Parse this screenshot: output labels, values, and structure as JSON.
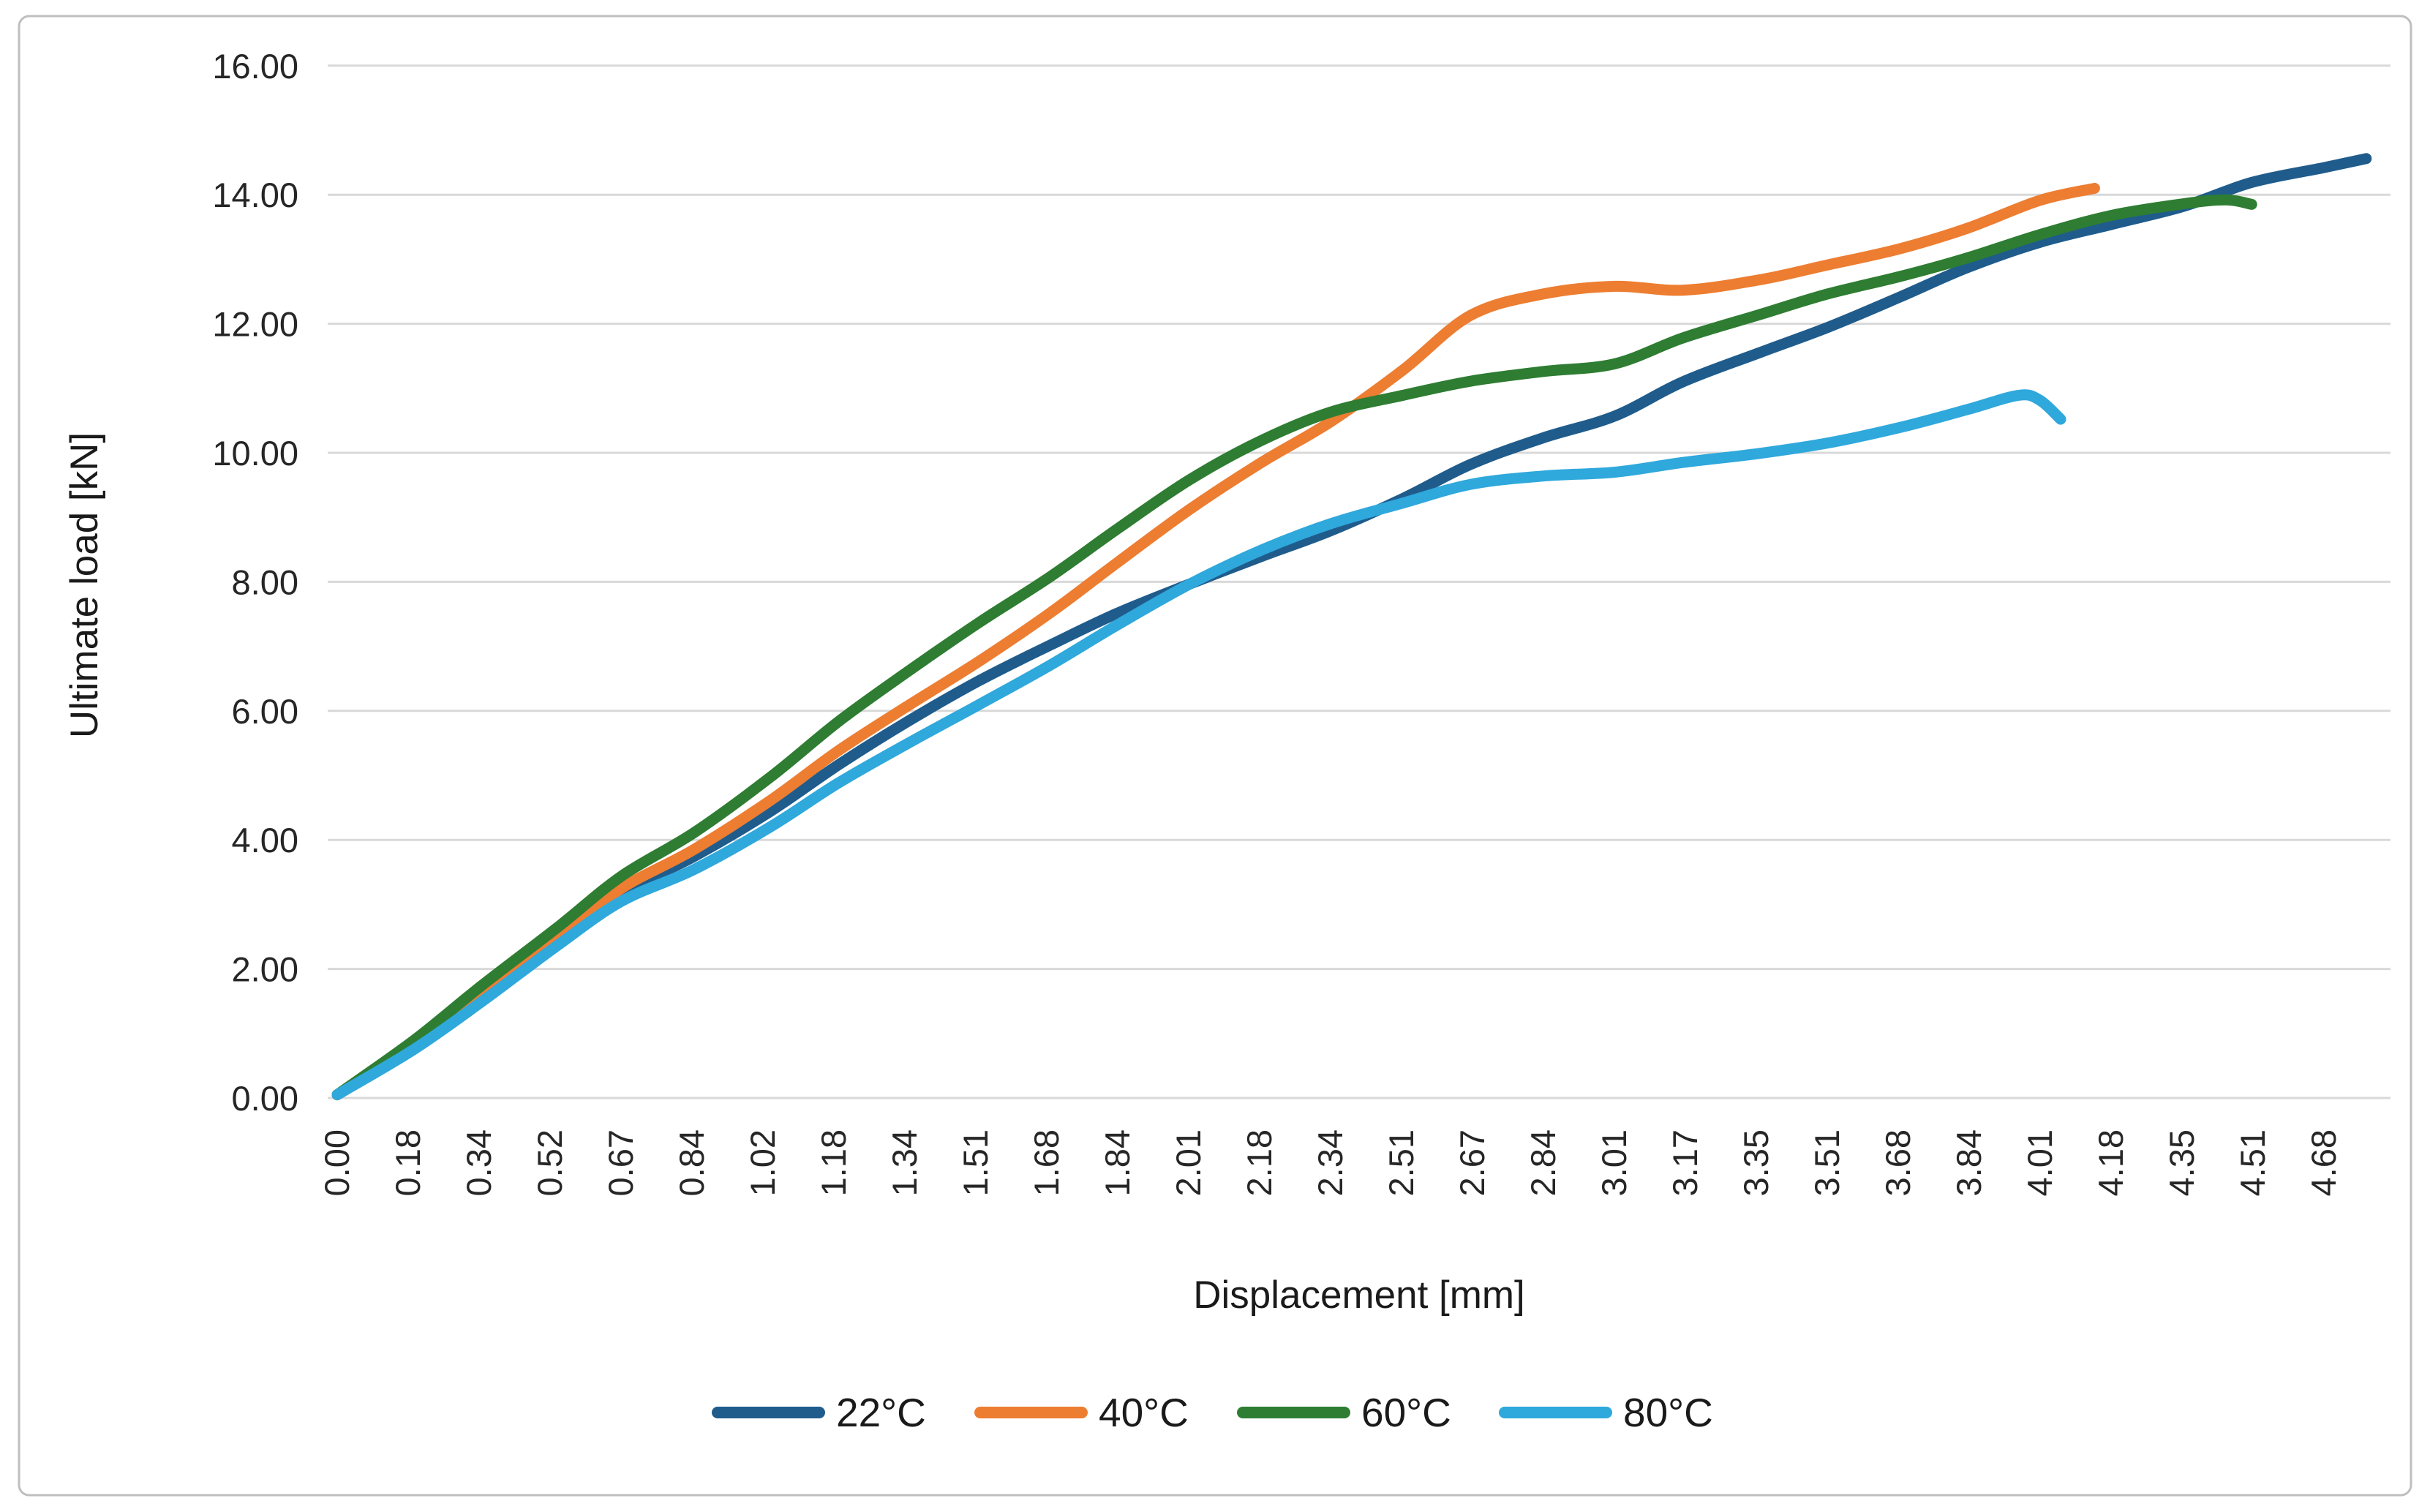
{
  "chart_data": {
    "type": "line",
    "title": "",
    "xlabel": "Displacement [mm]",
    "ylabel": "Ultimate load [kN]",
    "xlim": [
      0,
      4.68
    ],
    "ylim": [
      0,
      16
    ],
    "grid": "horizontal",
    "legend_position": "bottom-center",
    "gridline_color": "#D9D9D9",
    "border_color": "#BFBFBF",
    "x_tick_labels": [
      "0.00",
      "0.18",
      "0.34",
      "0.52",
      "0.67",
      "0.84",
      "1.02",
      "1.18",
      "1.34",
      "1.51",
      "1.68",
      "1.84",
      "2.01",
      "2.18",
      "2.34",
      "2.51",
      "2.67",
      "2.84",
      "3.01",
      "3.17",
      "3.35",
      "3.51",
      "3.68",
      "3.84",
      "4.01",
      "4.18",
      "4.35",
      "4.51",
      "4.68"
    ],
    "y_ticks": [
      {
        "label": "0.00",
        "value": 0
      },
      {
        "label": "2.00",
        "value": 2
      },
      {
        "label": "4.00",
        "value": 4
      },
      {
        "label": "6.00",
        "value": 6
      },
      {
        "label": "8.00",
        "value": 8
      },
      {
        "label": "10.00",
        "value": 10
      },
      {
        "label": "12.00",
        "value": 12
      },
      {
        "label": "14.00",
        "value": 14
      },
      {
        "label": "16.00",
        "value": 16
      }
    ],
    "series": [
      {
        "name": "22°C",
        "color": "#1F5C8C",
        "points": [
          [
            0,
            0.05
          ],
          [
            0.18,
            0.78
          ],
          [
            0.34,
            1.54
          ],
          [
            0.52,
            2.45
          ],
          [
            0.67,
            3.18
          ],
          [
            0.84,
            3.74
          ],
          [
            1.02,
            4.44
          ],
          [
            1.18,
            5.16
          ],
          [
            1.34,
            5.82
          ],
          [
            1.51,
            6.46
          ],
          [
            1.68,
            7.02
          ],
          [
            1.84,
            7.52
          ],
          [
            2.01,
            7.97
          ],
          [
            2.18,
            8.4
          ],
          [
            2.34,
            8.79
          ],
          [
            2.51,
            9.29
          ],
          [
            2.67,
            9.82
          ],
          [
            2.84,
            10.23
          ],
          [
            3.01,
            10.57
          ],
          [
            3.17,
            11.1
          ],
          [
            3.35,
            11.55
          ],
          [
            3.51,
            11.94
          ],
          [
            3.68,
            12.41
          ],
          [
            3.84,
            12.87
          ],
          [
            4.01,
            13.26
          ],
          [
            4.18,
            13.54
          ],
          [
            4.35,
            13.82
          ],
          [
            4.51,
            14.19
          ],
          [
            4.68,
            14.42
          ],
          [
            4.78,
            14.56
          ]
        ]
      },
      {
        "name": "40°C",
        "color": "#ED7D31",
        "points": [
          [
            0,
            0.05
          ],
          [
            0.18,
            0.81
          ],
          [
            0.34,
            1.59
          ],
          [
            0.52,
            2.5
          ],
          [
            0.67,
            3.25
          ],
          [
            0.84,
            3.85
          ],
          [
            1.02,
            4.61
          ],
          [
            1.18,
            5.38
          ],
          [
            1.34,
            6.06
          ],
          [
            1.51,
            6.76
          ],
          [
            1.68,
            7.52
          ],
          [
            1.84,
            8.31
          ],
          [
            2.01,
            9.13
          ],
          [
            2.18,
            9.86
          ],
          [
            2.34,
            10.48
          ],
          [
            2.51,
            11.28
          ],
          [
            2.67,
            12.13
          ],
          [
            2.84,
            12.46
          ],
          [
            3.01,
            12.58
          ],
          [
            3.17,
            12.52
          ],
          [
            3.35,
            12.68
          ],
          [
            3.51,
            12.91
          ],
          [
            3.68,
            13.16
          ],
          [
            3.84,
            13.48
          ],
          [
            4.01,
            13.91
          ],
          [
            4.14,
            14.1
          ]
        ]
      },
      {
        "name": "60°C",
        "color": "#2E7D32",
        "points": [
          [
            0,
            0.05
          ],
          [
            0.18,
            0.89
          ],
          [
            0.34,
            1.74
          ],
          [
            0.52,
            2.65
          ],
          [
            0.67,
            3.44
          ],
          [
            0.84,
            4.11
          ],
          [
            1.02,
            4.97
          ],
          [
            1.18,
            5.83
          ],
          [
            1.34,
            6.59
          ],
          [
            1.51,
            7.36
          ],
          [
            1.68,
            8.08
          ],
          [
            1.84,
            8.83
          ],
          [
            2.01,
            9.59
          ],
          [
            2.18,
            10.2
          ],
          [
            2.34,
            10.63
          ],
          [
            2.51,
            10.89
          ],
          [
            2.67,
            11.11
          ],
          [
            2.84,
            11.26
          ],
          [
            3.01,
            11.38
          ],
          [
            3.17,
            11.78
          ],
          [
            3.35,
            12.14
          ],
          [
            3.51,
            12.46
          ],
          [
            3.68,
            12.73
          ],
          [
            3.84,
            13.02
          ],
          [
            4.01,
            13.38
          ],
          [
            4.18,
            13.68
          ],
          [
            4.35,
            13.86
          ],
          [
            4.45,
            13.92
          ],
          [
            4.51,
            13.85
          ]
        ]
      },
      {
        "name": "80°C",
        "color": "#2FA8DC",
        "points": [
          [
            0,
            0.05
          ],
          [
            0.18,
            0.75
          ],
          [
            0.34,
            1.49
          ],
          [
            0.52,
            2.37
          ],
          [
            0.67,
            3.05
          ],
          [
            0.84,
            3.54
          ],
          [
            1.02,
            4.2
          ],
          [
            1.18,
            4.88
          ],
          [
            1.34,
            5.48
          ],
          [
            1.51,
            6.09
          ],
          [
            1.68,
            6.71
          ],
          [
            1.84,
            7.34
          ],
          [
            2.01,
            7.97
          ],
          [
            2.18,
            8.5
          ],
          [
            2.34,
            8.9
          ],
          [
            2.51,
            9.22
          ],
          [
            2.67,
            9.51
          ],
          [
            2.84,
            9.64
          ],
          [
            3.01,
            9.7
          ],
          [
            3.17,
            9.85
          ],
          [
            3.35,
            9.99
          ],
          [
            3.51,
            10.15
          ],
          [
            3.68,
            10.39
          ],
          [
            3.84,
            10.67
          ],
          [
            3.96,
            10.89
          ],
          [
            4.01,
            10.82
          ],
          [
            4.06,
            10.52
          ]
        ]
      }
    ]
  }
}
